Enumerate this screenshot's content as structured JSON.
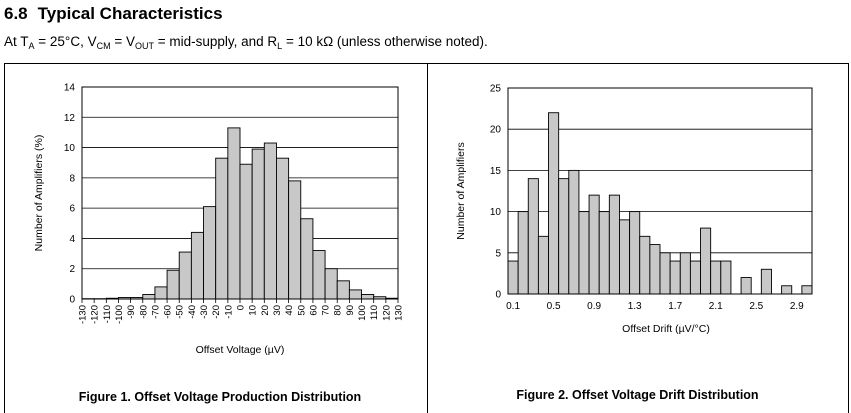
{
  "header": {
    "section_number": "6.8",
    "section_title": "Typical Characteristics",
    "conditions": {
      "p1": "At T",
      "s1": "A",
      "p2": " = 25°C, V",
      "s2": "CM",
      "p3": " = V",
      "s3": "OUT",
      "p4": " = mid-supply, and R",
      "s4": "L",
      "p5": " = 10 kΩ (unless otherwise noted)."
    }
  },
  "chart_data": [
    {
      "type": "bar",
      "title": "Figure 1. Offset Voltage Production Distribution",
      "xlabel": "Offset Voltage (µV)",
      "ylabel": "Number of Amplifiers (%)",
      "ylim": [
        0,
        14
      ],
      "yticks": [
        0,
        2,
        4,
        6,
        8,
        10,
        12,
        14
      ],
      "grid": "horizontal",
      "xticks": [
        "-130",
        "-120",
        "-110",
        "-100",
        "-90",
        "-80",
        "-70",
        "-60",
        "-50",
        "-40",
        "-30",
        "-20",
        "-10",
        "0",
        "10",
        "20",
        "30",
        "40",
        "50",
        "60",
        "70",
        "80",
        "90",
        "100",
        "110",
        "120",
        "130"
      ],
      "bin_width": 10,
      "bin_starts": [
        -130,
        -120,
        -110,
        -100,
        -90,
        -80,
        -70,
        -60,
        -50,
        -40,
        -30,
        -20,
        -10,
        0,
        10,
        20,
        30,
        40,
        50,
        60,
        70,
        80,
        90,
        100,
        110,
        120
      ],
      "values": [
        0.02,
        0.02,
        0.05,
        0.1,
        0.1,
        0.3,
        0.8,
        1.9,
        3.1,
        4.4,
        6.1,
        9.3,
        11.3,
        8.9,
        9.9,
        10.3,
        9.3,
        7.8,
        5.3,
        3.2,
        2.0,
        1.2,
        0.6,
        0.3,
        0.15,
        0.05
      ]
    },
    {
      "type": "bar",
      "title": "Figure 2. Offset Voltage Drift Distribution",
      "xlabel": "Offset Drift (µV/°C)",
      "ylabel": "Number of Amplifiers",
      "ylim": [
        0,
        25
      ],
      "yticks": [
        0,
        5,
        10,
        15,
        20,
        25
      ],
      "grid": "horizontal",
      "xlim": [
        0.05,
        3.05
      ],
      "xticks": [
        "0.1",
        "0.5",
        "0.9",
        "1.3",
        "1.7",
        "2.1",
        "2.5",
        "2.9"
      ],
      "bin_width": 0.1,
      "bin_starts": [
        0.05,
        0.15,
        0.25,
        0.35,
        0.45,
        0.55,
        0.65,
        0.75,
        0.85,
        0.95,
        1.05,
        1.15,
        1.25,
        1.35,
        1.45,
        1.55,
        1.65,
        1.75,
        1.85,
        1.95,
        2.05,
        2.15,
        2.25,
        2.35,
        2.45,
        2.55,
        2.65,
        2.75,
        2.85,
        2.95
      ],
      "values": [
        4,
        10,
        14,
        7,
        22,
        14,
        15,
        10,
        12,
        10,
        12,
        9,
        10,
        7,
        6,
        5,
        4,
        5,
        4,
        8,
        4,
        4,
        0,
        2,
        0,
        3,
        0,
        1,
        0,
        1
      ]
    }
  ]
}
